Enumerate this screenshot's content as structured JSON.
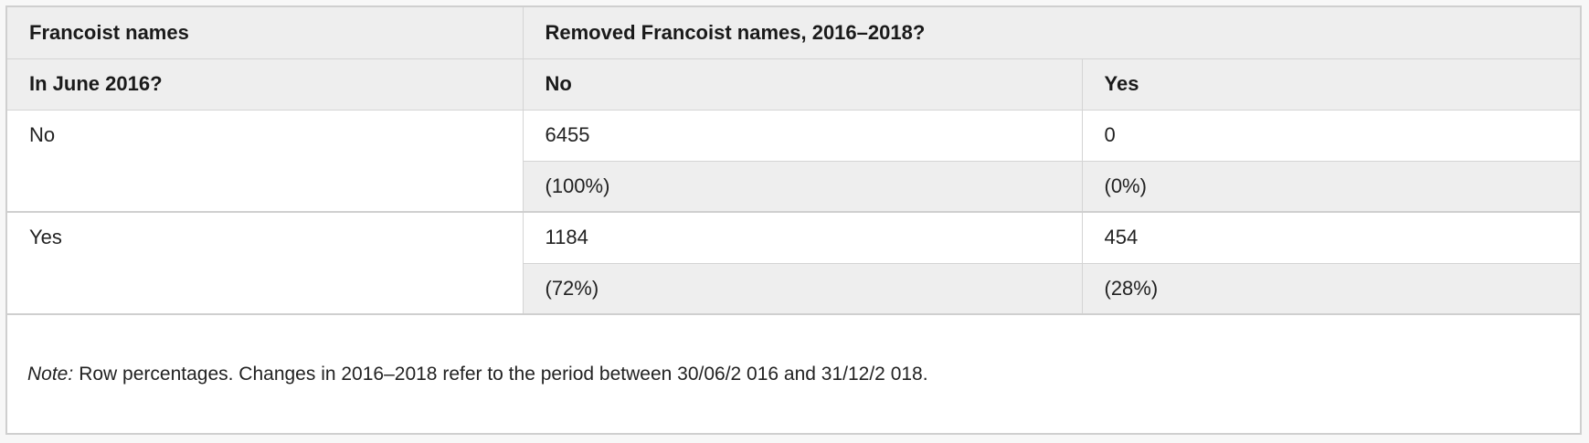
{
  "table": {
    "header_row1": {
      "row_label": "Francoist names",
      "column_group": "Removed Francoist names, 2016–2018?"
    },
    "header_row2": {
      "row_label": "In June 2016?",
      "col_no": "No",
      "col_yes": "Yes"
    },
    "rows": [
      {
        "label": "No",
        "count_no": "6455",
        "count_yes": "0",
        "pct_no": "(100%)",
        "pct_yes": "(0%)"
      },
      {
        "label": "Yes",
        "count_no": "1184",
        "count_yes": "454",
        "pct_no": "(72%)",
        "pct_yes": "(28%)"
      }
    ]
  },
  "note": {
    "label": "Note:",
    "text": "Row percentages. Changes in 2016–2018 refer to the period between 30/06/2 016 and 31/12/2 018."
  },
  "colors": {
    "header_bg": "#eeeeee",
    "border": "#d4d4d4",
    "frame_border": "#cfcfcf",
    "text": "#222222"
  }
}
